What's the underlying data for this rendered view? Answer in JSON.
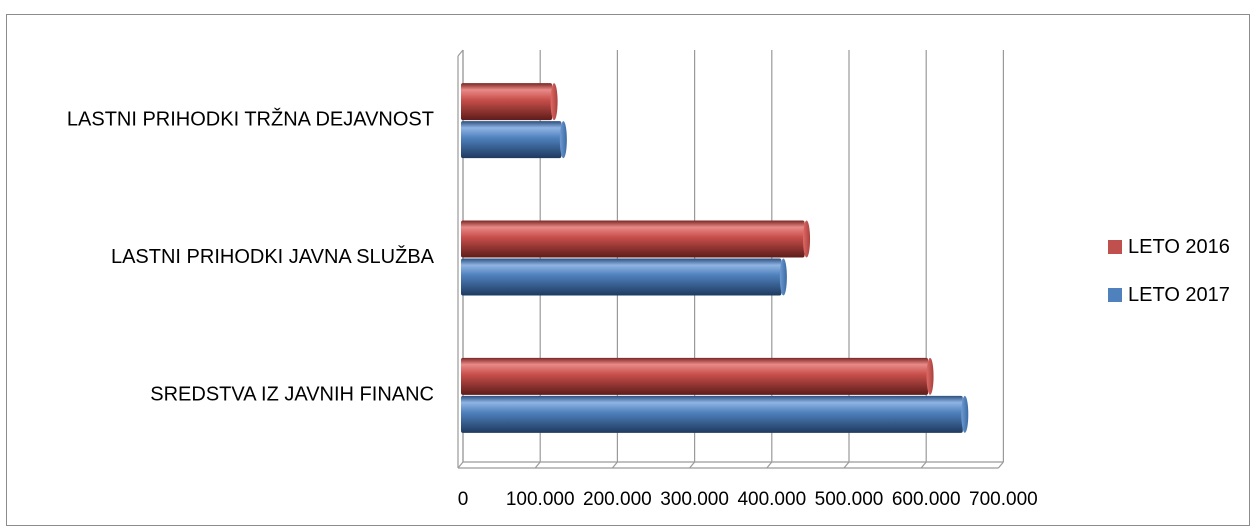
{
  "chart_data": {
    "type": "bar",
    "orientation": "horizontal",
    "style": "3d-cylinder",
    "categories": [
      "SREDSTVA IZ JAVNIH FINANC",
      "LASTNI PRIHODKI JAVNA SLUŽBA",
      "LASTNI PRIHODKI TRŽNA DEJAVNOST"
    ],
    "series": [
      {
        "name": "LETO 2016",
        "color": "#c0504d",
        "values": [
          605000,
          445000,
          118000
        ]
      },
      {
        "name": "LETO 2017",
        "color": "#4f81bd",
        "values": [
          650000,
          415000,
          130000
        ]
      }
    ],
    "xticks": [
      "0",
      "100.000",
      "200.000",
      "300.000",
      "400.000",
      "500.000",
      "600.000",
      "700.000"
    ],
    "xlim": [
      0,
      700000
    ],
    "grid": true,
    "legend": "right"
  }
}
